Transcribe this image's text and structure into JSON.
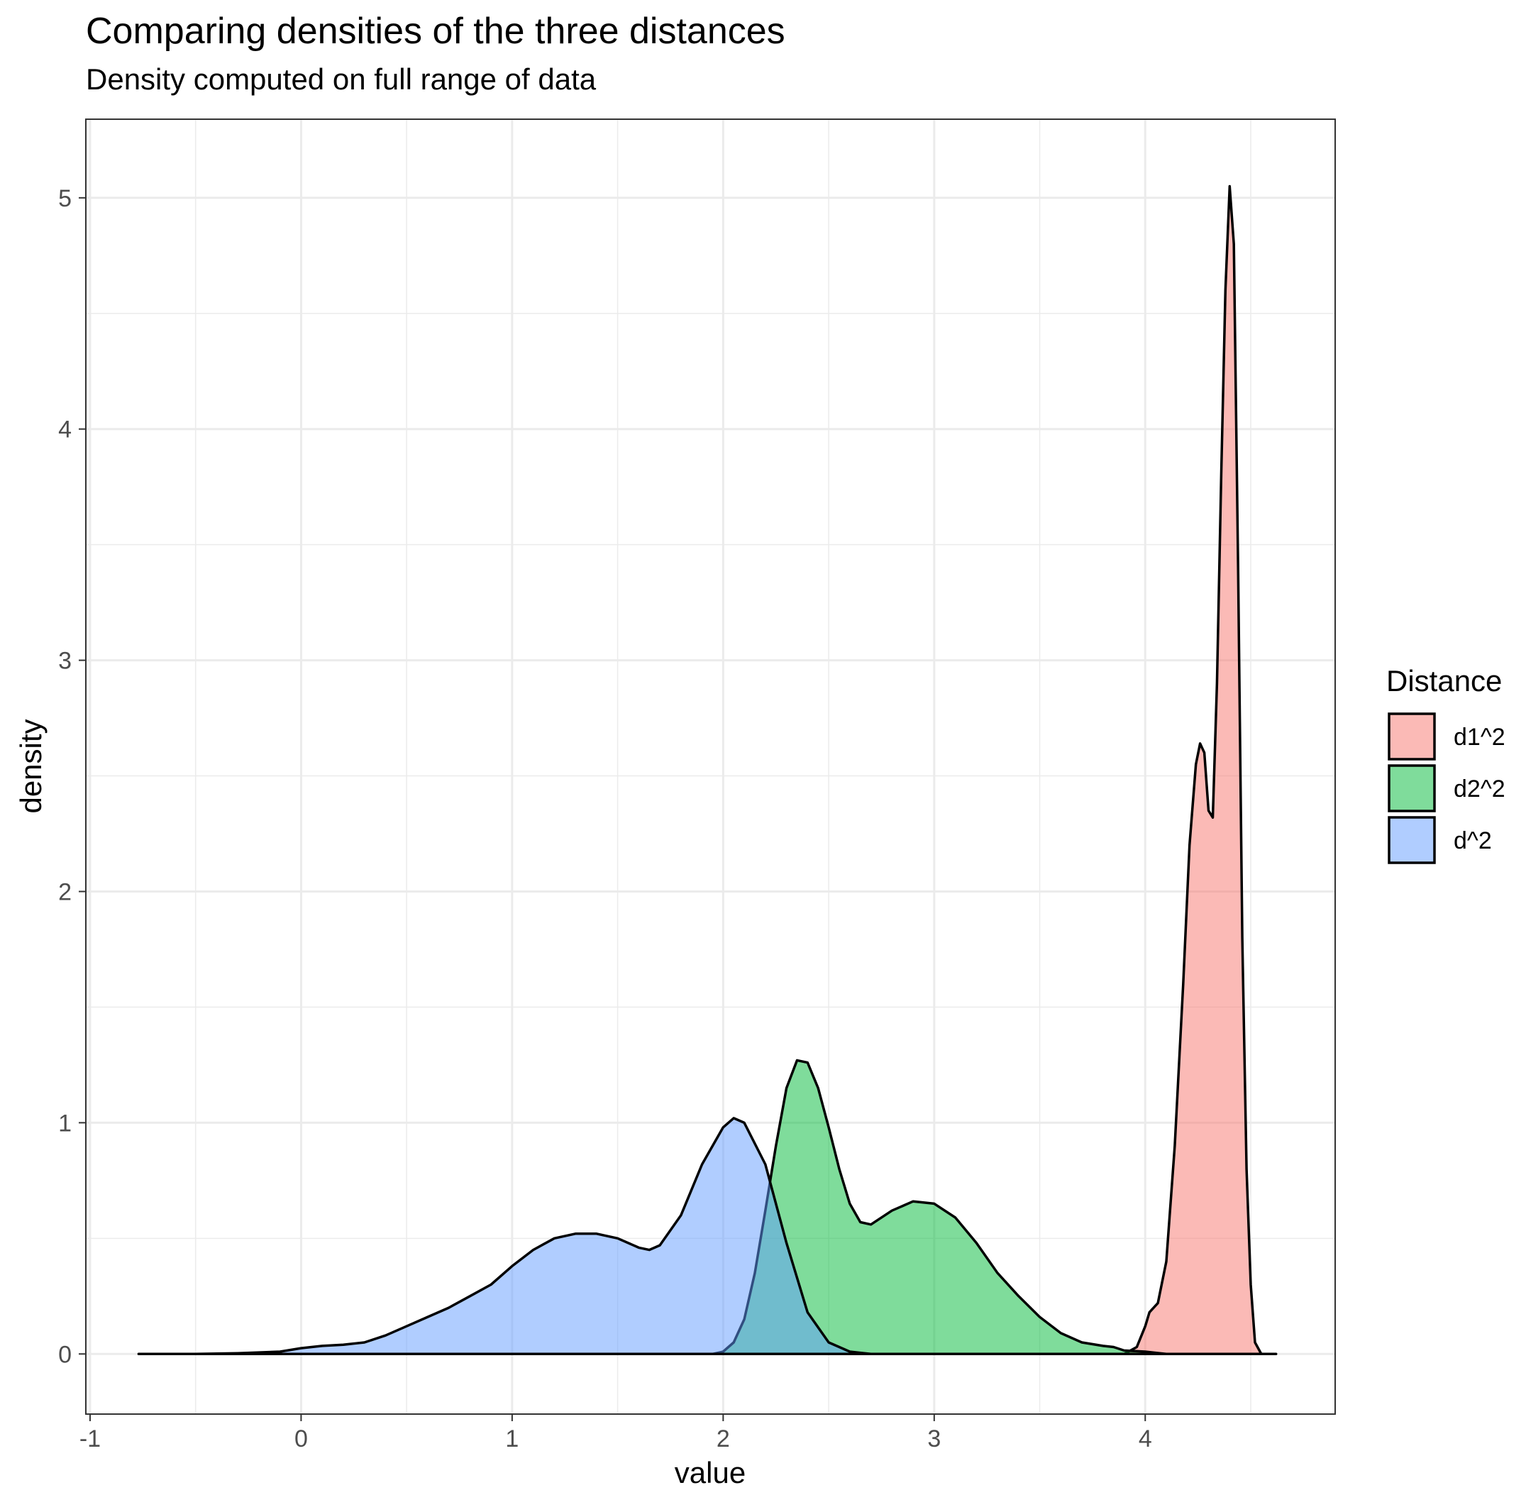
{
  "title": "Comparing densities of the three distances",
  "subtitle": "Density computed on full range of data",
  "chart_data": {
    "type": "area",
    "title": "Comparing densities of the three distances",
    "subtitle": "Density computed on full range of data",
    "xlabel": "value",
    "ylabel": "density",
    "xlim": [
      -1.02,
      4.9
    ],
    "ylim": [
      -0.26,
      5.34
    ],
    "x_ticks": [
      -1,
      0,
      1,
      2,
      3,
      4
    ],
    "y_ticks": [
      0,
      1,
      2,
      3,
      4,
      5
    ],
    "x_tick_labels": [
      "-1",
      "0",
      "1",
      "2",
      "3",
      "4"
    ],
    "y_tick_labels": [
      "0",
      "1",
      "2",
      "3",
      "4",
      "5"
    ],
    "grid": true,
    "legend": {
      "title": "Distance",
      "position": "right"
    },
    "series": [
      {
        "name": "d1^2",
        "color": "#F8766D",
        "points": [
          [
            3.9,
            0.0
          ],
          [
            3.96,
            0.03
          ],
          [
            4.0,
            0.12
          ],
          [
            4.02,
            0.18
          ],
          [
            4.06,
            0.22
          ],
          [
            4.1,
            0.4
          ],
          [
            4.14,
            0.9
          ],
          [
            4.18,
            1.6
          ],
          [
            4.21,
            2.2
          ],
          [
            4.24,
            2.55
          ],
          [
            4.26,
            2.64
          ],
          [
            4.28,
            2.6
          ],
          [
            4.3,
            2.35
          ],
          [
            4.32,
            2.32
          ],
          [
            4.34,
            2.9
          ],
          [
            4.36,
            3.8
          ],
          [
            4.38,
            4.6
          ],
          [
            4.4,
            5.05
          ],
          [
            4.42,
            4.8
          ],
          [
            4.44,
            3.4
          ],
          [
            4.46,
            1.8
          ],
          [
            4.48,
            0.8
          ],
          [
            4.5,
            0.3
          ],
          [
            4.52,
            0.05
          ],
          [
            4.55,
            0.0
          ]
        ]
      },
      {
        "name": "d2^2",
        "color": "#00BA38",
        "points": [
          [
            1.95,
            0.0
          ],
          [
            2.0,
            0.01
          ],
          [
            2.05,
            0.05
          ],
          [
            2.1,
            0.15
          ],
          [
            2.15,
            0.35
          ],
          [
            2.2,
            0.62
          ],
          [
            2.25,
            0.9
          ],
          [
            2.3,
            1.15
          ],
          [
            2.35,
            1.27
          ],
          [
            2.4,
            1.26
          ],
          [
            2.45,
            1.15
          ],
          [
            2.5,
            0.98
          ],
          [
            2.55,
            0.8
          ],
          [
            2.6,
            0.65
          ],
          [
            2.65,
            0.57
          ],
          [
            2.7,
            0.56
          ],
          [
            2.8,
            0.62
          ],
          [
            2.9,
            0.66
          ],
          [
            3.0,
            0.65
          ],
          [
            3.1,
            0.59
          ],
          [
            3.2,
            0.48
          ],
          [
            3.3,
            0.35
          ],
          [
            3.4,
            0.25
          ],
          [
            3.5,
            0.16
          ],
          [
            3.6,
            0.09
          ],
          [
            3.7,
            0.05
          ],
          [
            3.8,
            0.035
          ],
          [
            3.85,
            0.03
          ],
          [
            3.9,
            0.015
          ],
          [
            4.0,
            0.01
          ],
          [
            4.1,
            0.0
          ]
        ]
      },
      {
        "name": "d^2",
        "color": "#619CFF",
        "points": [
          [
            -0.77,
            0.0
          ],
          [
            -0.5,
            0.0
          ],
          [
            -0.3,
            0.003
          ],
          [
            -0.1,
            0.01
          ],
          [
            0.0,
            0.025
          ],
          [
            0.1,
            0.035
          ],
          [
            0.2,
            0.04
          ],
          [
            0.3,
            0.05
          ],
          [
            0.4,
            0.08
          ],
          [
            0.5,
            0.12
          ],
          [
            0.6,
            0.16
          ],
          [
            0.7,
            0.2
          ],
          [
            0.8,
            0.25
          ],
          [
            0.9,
            0.3
          ],
          [
            1.0,
            0.38
          ],
          [
            1.1,
            0.45
          ],
          [
            1.2,
            0.5
          ],
          [
            1.3,
            0.52
          ],
          [
            1.4,
            0.52
          ],
          [
            1.5,
            0.5
          ],
          [
            1.6,
            0.46
          ],
          [
            1.65,
            0.45
          ],
          [
            1.7,
            0.47
          ],
          [
            1.8,
            0.6
          ],
          [
            1.9,
            0.82
          ],
          [
            2.0,
            0.98
          ],
          [
            2.05,
            1.02
          ],
          [
            2.1,
            1.0
          ],
          [
            2.2,
            0.82
          ],
          [
            2.3,
            0.48
          ],
          [
            2.4,
            0.18
          ],
          [
            2.5,
            0.05
          ],
          [
            2.6,
            0.01
          ],
          [
            2.7,
            0.0
          ],
          [
            4.62,
            0.0
          ]
        ]
      }
    ]
  }
}
